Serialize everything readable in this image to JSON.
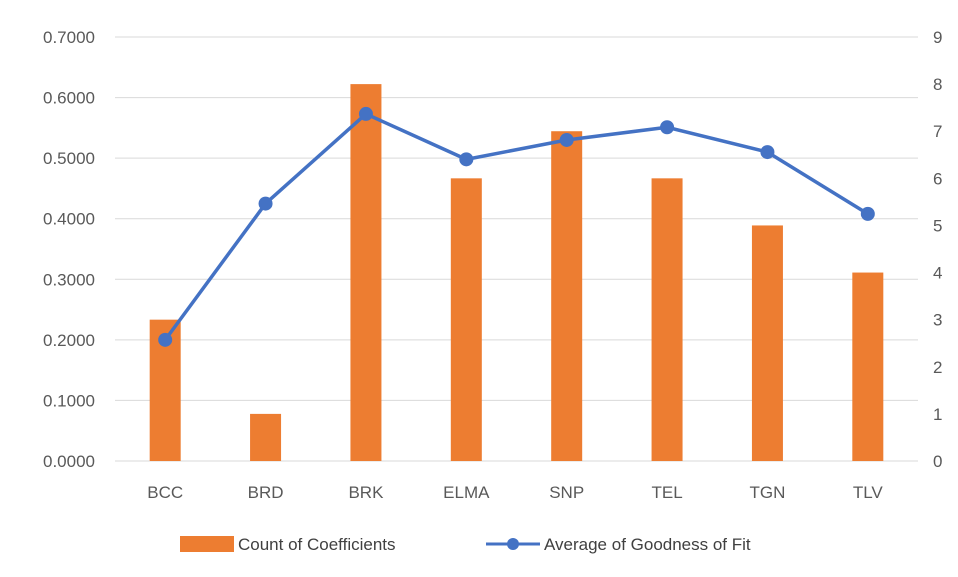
{
  "chart_data": {
    "type": "bar+line",
    "categories": [
      "BCC",
      "BRD",
      "BRK",
      "ELMA",
      "SNP",
      "TEL",
      "TGN",
      "TLV"
    ],
    "series": [
      {
        "name": "Count of Coefficients",
        "type": "bar",
        "axis": "right",
        "color": "#ed7d31",
        "values": [
          3,
          1,
          8,
          6,
          7,
          6,
          5,
          4
        ]
      },
      {
        "name": "Average of Goodness of Fit",
        "type": "line",
        "axis": "left",
        "color": "#4472c4",
        "values": [
          0.2,
          0.425,
          0.573,
          0.498,
          0.53,
          0.551,
          0.51,
          0.408
        ]
      }
    ],
    "y_left": {
      "ylim": [
        0,
        0.7
      ],
      "ticks": [
        "0.0000",
        "0.1000",
        "0.2000",
        "0.3000",
        "0.4000",
        "0.5000",
        "0.6000",
        "0.7000"
      ]
    },
    "y_right": {
      "ylim": [
        0,
        9
      ],
      "ticks": [
        "0",
        "1",
        "2",
        "3",
        "4",
        "5",
        "6",
        "7",
        "8",
        "9"
      ]
    },
    "grid": true,
    "legend_position": "bottom",
    "legend": [
      "Count of Coefficients",
      "Average of Goodness of Fit"
    ]
  }
}
